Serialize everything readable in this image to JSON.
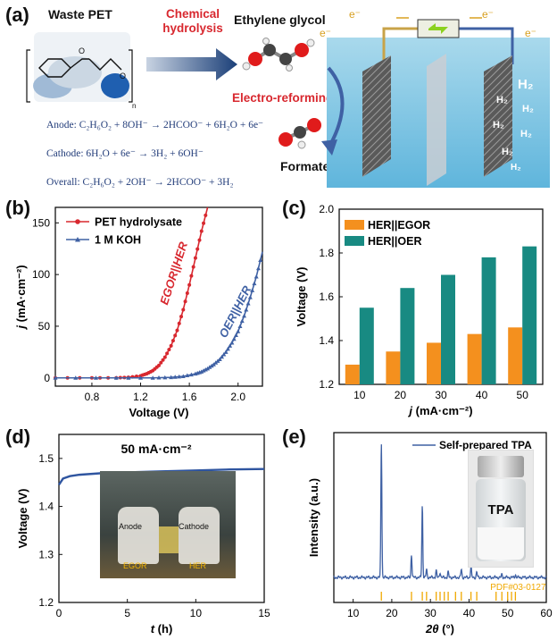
{
  "panel_a": {
    "letter": "(a)",
    "waste_pet": "Waste PET",
    "step": "Chemical hydrolysis",
    "step_line1": "Chemical",
    "step_line2": "hydrolysis",
    "ethylene_glycol": "Ethylene glycol",
    "electro_reforming": "Electro-reforming",
    "formate": "Formate",
    "electron_left": "e⁻",
    "electron_mid_left": "e⁻",
    "electron_right": "e⁻",
    "electron_far_right": "e⁻",
    "h2_large": "H₂",
    "h2_small": "H₂",
    "anode_eq": "Anode: C₂H₆O₂ + 8OH⁻ → 2HCOO⁻ + 6H₂O + 6e⁻",
    "cathode_eq": "Cathode: 6H₂O + 6e⁻ → 3H₂ + 6OH⁻",
    "overall_eq": "Overall: C₂H₆O₂ + 2OH⁻ → 2HCOO⁻ + 3H₂",
    "polymer_n": "n"
  },
  "panel_b": {
    "letter": "(b)",
    "ylabel_j": "j",
    "ylabel_unit": " (mA·cm⁻²)",
    "xlabel": "Voltage (V)",
    "curve_label_red": "EGOR||HER",
    "curve_label_blue": "OER||HER"
  },
  "panel_c": {
    "letter": "(c)",
    "ylabel": "Voltage (V)",
    "xlabel_j": "j",
    "xlabel_unit": " (mA·cm⁻²)"
  },
  "panel_d": {
    "letter": "(d)",
    "annotation": "50 mA·cm⁻²",
    "ylabel": "Voltage (V)",
    "xlabel_t": "t",
    "xlabel_unit": " (h)",
    "photo_anode": "Anode",
    "photo_cathode": "Cathode",
    "photo_egor": "EGOR",
    "photo_her": "HER"
  },
  "panel_e": {
    "letter": "(e)",
    "ylabel": "Intensity (a.u.)",
    "xlabel_theta": "2θ",
    "xlabel_unit": " (°)",
    "legend": "Self-prepared TPA",
    "ref_label": "PDF#03-0127",
    "photo_tpa": "TPA"
  },
  "chart_data": [
    {
      "type": "line",
      "panel": "b",
      "xlabel": "Voltage (V)",
      "ylabel": "j (mA·cm⁻²)",
      "xlim": [
        0.5,
        2.2
      ],
      "ylim": [
        -8,
        165
      ],
      "xticks": [
        "0.8",
        "1.2",
        "1.6",
        "2.0"
      ],
      "yticks": [
        "0",
        "50",
        "100",
        "150"
      ],
      "legend_position": "top-left",
      "colors": {
        "PET hydrolysate": "#d8282f",
        "1 M KOH": "#3f61a4"
      },
      "series": [
        {
          "name": "PET hydrolysate",
          "x": [
            0.5,
            0.8,
            1.0,
            1.1,
            1.2,
            1.25,
            1.3,
            1.35,
            1.4,
            1.45,
            1.5,
            1.55,
            1.6,
            1.65,
            1.7,
            1.75
          ],
          "y": [
            0,
            0,
            0,
            0.5,
            2,
            4,
            7,
            12,
            20,
            31,
            46,
            66,
            90,
            116,
            142,
            165
          ]
        },
        {
          "name": "1 M KOH",
          "x": [
            0.5,
            1.0,
            1.3,
            1.45,
            1.55,
            1.65,
            1.7,
            1.75,
            1.8,
            1.85,
            1.9,
            1.95,
            2.0,
            2.05,
            2.1,
            2.15,
            2.2
          ],
          "y": [
            0,
            0,
            0,
            0.5,
            1.5,
            4,
            6,
            9,
            13,
            18,
            25,
            34,
            45,
            60,
            78,
            98,
            122
          ]
        }
      ]
    },
    {
      "type": "bar",
      "panel": "c",
      "categories": [
        "10",
        "20",
        "30",
        "40",
        "50"
      ],
      "xlabel": "j (mA·cm⁻²)",
      "ylabel": "Voltage (V)",
      "ylim": [
        1.2,
        2.0
      ],
      "yticks": [
        "1.2",
        "1.4",
        "1.6",
        "1.8",
        "2.0"
      ],
      "legend_position": "top-left",
      "series": [
        {
          "name": "HER||EGOR",
          "color": "#f4901e",
          "values": [
            1.29,
            1.35,
            1.39,
            1.43,
            1.46
          ]
        },
        {
          "name": "HER||OER",
          "color": "#188a82",
          "values": [
            1.55,
            1.64,
            1.7,
            1.78,
            1.83
          ]
        }
      ]
    },
    {
      "type": "line",
      "panel": "d",
      "xlabel": "t (h)",
      "ylabel": "Voltage (V)",
      "xlim": [
        0,
        15
      ],
      "ylim": [
        1.2,
        1.55
      ],
      "xticks": [
        "0",
        "5",
        "10",
        "15"
      ],
      "yticks": [
        "1.2",
        "1.3",
        "1.4",
        "1.5"
      ],
      "series": [
        {
          "name": "",
          "color": "#2f55a0",
          "x": [
            0,
            0.3,
            0.8,
            1.5,
            3,
            5,
            7.5,
            10,
            12.5,
            15
          ],
          "y": [
            1.445,
            1.458,
            1.463,
            1.466,
            1.469,
            1.471,
            1.473,
            1.475,
            1.477,
            1.478
          ]
        }
      ]
    },
    {
      "type": "line",
      "panel": "e",
      "xlabel": "2θ (°)",
      "ylabel": "Intensity (a.u.)",
      "xlim": [
        5,
        60
      ],
      "xticks": [
        "10",
        "20",
        "30",
        "40",
        "50",
        "60"
      ],
      "legend_position": "top-right",
      "series": [
        {
          "name": "Self-prepared TPA",
          "color": "#3f61a4",
          "peaks": [
            [
              17.3,
              1.0
            ],
            [
              25.1,
              0.17
            ],
            [
              27.9,
              0.53
            ],
            [
              29.0,
              0.06
            ],
            [
              31.5,
              0.05
            ],
            [
              32.5,
              0.04
            ],
            [
              34.6,
              0.04
            ],
            [
              38.0,
              0.06
            ],
            [
              40.5,
              0.08
            ],
            [
              42.0,
              0.04
            ],
            [
              48.5,
              0.02
            ],
            [
              52.0,
              0.02
            ]
          ]
        },
        {
          "name": "PDF#03-0127",
          "color": "#f0a800",
          "sticks": [
            17.3,
            25.1,
            27.9,
            29.0,
            31.5,
            32.5,
            33.6,
            34.6,
            36.5,
            38.0,
            40.5,
            42.0,
            47.0,
            48.5,
            50.0,
            51.0,
            52.0
          ]
        }
      ]
    }
  ]
}
